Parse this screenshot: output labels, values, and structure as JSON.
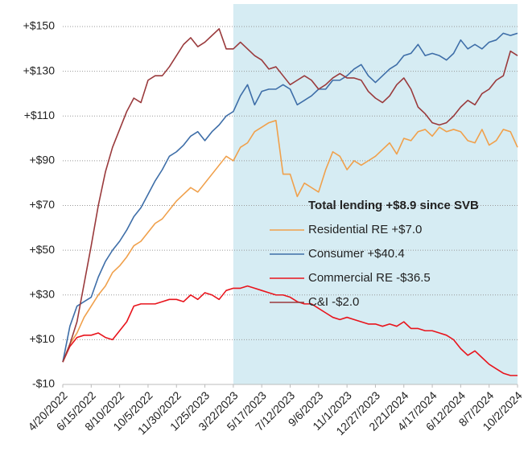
{
  "chart_data": {
    "type": "line",
    "legend_title": "Total lending +$8.9 since SVB",
    "categories": [
      "4/20/2022",
      null,
      null,
      null,
      "6/15/2022",
      null,
      null,
      null,
      "8/10/2022",
      null,
      null,
      null,
      "10/5/2022",
      null,
      null,
      null,
      "11/30/2022",
      null,
      null,
      null,
      "1/25/2023",
      null,
      null,
      null,
      "3/22/2023",
      null,
      null,
      null,
      "5/17/2023",
      null,
      null,
      null,
      "7/12/2023",
      null,
      null,
      null,
      "9/6/2023",
      null,
      null,
      null,
      "11/1/2023",
      null,
      null,
      null,
      "12/27/2023",
      null,
      null,
      null,
      "2/21/2024",
      null,
      null,
      null,
      "4/17/2024",
      null,
      null,
      null,
      "6/12/2024",
      null,
      null,
      null,
      "8/7/2024",
      null,
      null,
      null,
      "10/2/2024"
    ],
    "series": [
      {
        "name": "Residential RE +$7.0",
        "color": "#f0a04b",
        "values": [
          0,
          8,
          13,
          20,
          25,
          30,
          34,
          40,
          43,
          47,
          52,
          54,
          58,
          62,
          64,
          68,
          72,
          75,
          78,
          76,
          80,
          84,
          88,
          92,
          90,
          96,
          98,
          103,
          105,
          107,
          108,
          84,
          84,
          74,
          80,
          78,
          76,
          86,
          94,
          92,
          86,
          90,
          88,
          90,
          92,
          95,
          98,
          93,
          100,
          99,
          103,
          104,
          101,
          105,
          103,
          104,
          103,
          99,
          98,
          104,
          97,
          99,
          104,
          103,
          96
        ]
      },
      {
        "name": "Consumer +$40.4",
        "color": "#3e6ea8",
        "values": [
          0,
          16,
          25,
          27,
          29,
          38,
          45,
          50,
          54,
          59,
          65,
          69,
          75,
          81,
          86,
          92,
          94,
          97,
          101,
          103,
          99,
          103,
          106,
          110,
          112,
          119,
          124,
          115,
          121,
          122,
          122,
          124,
          122,
          115,
          117,
          119,
          122,
          122,
          126,
          126,
          128,
          131,
          133,
          128,
          125,
          128,
          131,
          133,
          137,
          138,
          142,
          137,
          138,
          137,
          135,
          138,
          144,
          140,
          142,
          140,
          143,
          144,
          147,
          146,
          147
        ]
      },
      {
        "name": "Commercial RE -$36.5",
        "color": "#e8141c",
        "values": [
          0,
          7,
          11,
          12,
          12,
          13,
          11,
          10,
          14,
          18,
          25,
          26,
          26,
          26,
          27,
          28,
          28,
          27,
          30,
          28,
          31,
          30,
          28,
          32,
          33,
          33,
          34,
          33,
          32,
          31,
          30,
          30,
          29,
          27,
          26,
          26,
          24,
          22,
          20,
          19,
          20,
          19,
          18,
          17,
          17,
          16,
          17,
          16,
          18,
          15,
          15,
          14,
          14,
          13,
          12,
          10,
          6,
          3,
          5,
          2,
          -1,
          -3,
          -5,
          -6,
          -6
        ]
      },
      {
        "name": "C&I -$2.0",
        "color": "#9a3a3c",
        "values": [
          0,
          8,
          18,
          35,
          52,
          70,
          85,
          96,
          104,
          112,
          118,
          116,
          126,
          128,
          128,
          132,
          137,
          142,
          145,
          141,
          143,
          146,
          149,
          140,
          140,
          143,
          140,
          137,
          135,
          131,
          132,
          128,
          124,
          126,
          128,
          126,
          122,
          124,
          127,
          129,
          127,
          127,
          126,
          121,
          118,
          116,
          119,
          124,
          127,
          122,
          114,
          111,
          107,
          106,
          107,
          110,
          114,
          117,
          115,
          120,
          122,
          126,
          128,
          139,
          137
        ]
      }
    ],
    "ylim": [
      -10,
      150
    ],
    "yticks": [
      {
        "value": -10,
        "label": "-$10"
      },
      {
        "value": 10,
        "label": "+$10"
      },
      {
        "value": 30,
        "label": "+$30"
      },
      {
        "value": 50,
        "label": "+$50"
      },
      {
        "value": 70,
        "label": "+$70"
      },
      {
        "value": 90,
        "label": "+$90"
      },
      {
        "value": 110,
        "label": "+$110"
      },
      {
        "value": 130,
        "label": "+$130"
      },
      {
        "value": 150,
        "label": "+$150"
      }
    ],
    "grid": true
  }
}
